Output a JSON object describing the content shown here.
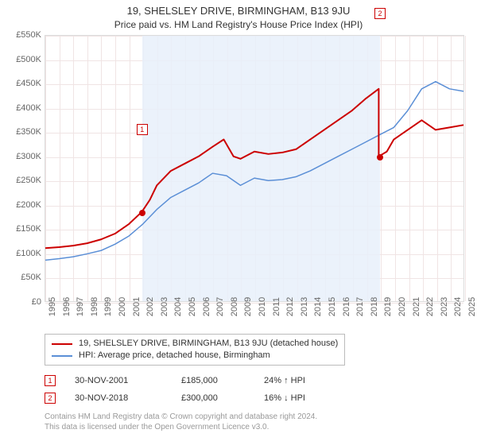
{
  "title": "19, SHELSLEY DRIVE, BIRMINGHAM, B13 9JU",
  "subtitle": "Price paid vs. HM Land Registry's House Price Index (HPI)",
  "chart": {
    "ylim": [
      0,
      550000
    ],
    "ytick_step": 50000,
    "yticks_labels": [
      "£0",
      "£50K",
      "£100K",
      "£150K",
      "£200K",
      "£250K",
      "£300K",
      "£350K",
      "£400K",
      "£450K",
      "£500K",
      "£550K"
    ],
    "x_years": [
      1995,
      1996,
      1997,
      1998,
      1999,
      2000,
      2001,
      2002,
      2003,
      2004,
      2005,
      2006,
      2007,
      2008,
      2009,
      2010,
      2011,
      2012,
      2013,
      2014,
      2015,
      2016,
      2017,
      2018,
      2019,
      2020,
      2021,
      2022,
      2023,
      2024,
      2025
    ],
    "shade_band": {
      "start_year": 2001.92,
      "end_year": 2018.92,
      "color": "#e8f0fa"
    },
    "grid_color": "#f0e4e4",
    "border_color": "#dcdcdc",
    "background_color": "#ffffff",
    "series": [
      {
        "id": "property",
        "color": "#cc0000",
        "width": 2,
        "points": [
          [
            1995,
            110000
          ],
          [
            1996,
            112000
          ],
          [
            1997,
            115000
          ],
          [
            1998,
            120000
          ],
          [
            1999,
            128000
          ],
          [
            2000,
            140000
          ],
          [
            2001,
            160000
          ],
          [
            2001.92,
            185000
          ],
          [
            2002.5,
            210000
          ],
          [
            2003,
            240000
          ],
          [
            2004,
            270000
          ],
          [
            2005,
            285000
          ],
          [
            2006,
            300000
          ],
          [
            2007,
            320000
          ],
          [
            2007.8,
            335000
          ],
          [
            2008.5,
            300000
          ],
          [
            2009,
            295000
          ],
          [
            2010,
            310000
          ],
          [
            2011,
            305000
          ],
          [
            2012,
            308000
          ],
          [
            2013,
            315000
          ],
          [
            2014,
            335000
          ],
          [
            2015,
            355000
          ],
          [
            2016,
            375000
          ],
          [
            2017,
            395000
          ],
          [
            2018,
            420000
          ],
          [
            2018.92,
            440000
          ],
          [
            2018.921,
            300000
          ],
          [
            2019.5,
            310000
          ],
          [
            2020,
            335000
          ],
          [
            2021,
            355000
          ],
          [
            2022,
            375000
          ],
          [
            2023,
            355000
          ],
          [
            2024,
            360000
          ],
          [
            2025,
            365000
          ]
        ]
      },
      {
        "id": "hpi",
        "color": "#5b8fd6",
        "width": 1.5,
        "points": [
          [
            1995,
            85000
          ],
          [
            1996,
            88000
          ],
          [
            1997,
            92000
          ],
          [
            1998,
            98000
          ],
          [
            1999,
            105000
          ],
          [
            2000,
            118000
          ],
          [
            2001,
            135000
          ],
          [
            2002,
            160000
          ],
          [
            2003,
            190000
          ],
          [
            2004,
            215000
          ],
          [
            2005,
            230000
          ],
          [
            2006,
            245000
          ],
          [
            2007,
            265000
          ],
          [
            2008,
            260000
          ],
          [
            2009,
            240000
          ],
          [
            2010,
            255000
          ],
          [
            2011,
            250000
          ],
          [
            2012,
            252000
          ],
          [
            2013,
            258000
          ],
          [
            2014,
            270000
          ],
          [
            2015,
            285000
          ],
          [
            2016,
            300000
          ],
          [
            2017,
            315000
          ],
          [
            2018,
            330000
          ],
          [
            2019,
            345000
          ],
          [
            2020,
            360000
          ],
          [
            2021,
            395000
          ],
          [
            2022,
            440000
          ],
          [
            2023,
            455000
          ],
          [
            2024,
            440000
          ],
          [
            2025,
            435000
          ]
        ]
      }
    ],
    "markers": [
      {
        "n": "1",
        "year": 2001.92,
        "value": 185000,
        "dot_color": "#cc0000",
        "box_offset_y": -112
      },
      {
        "n": "2",
        "year": 2018.92,
        "value": 300000,
        "dot_color": "#cc0000",
        "box_offset_y": -188
      }
    ]
  },
  "legend": {
    "items": [
      {
        "color": "#cc0000",
        "label": "19, SHELSLEY DRIVE, BIRMINGHAM, B13 9JU (detached house)"
      },
      {
        "color": "#5b8fd6",
        "label": "HPI: Average price, detached house, Birmingham"
      }
    ]
  },
  "transactions": [
    {
      "n": "1",
      "date": "30-NOV-2001",
      "price": "£185,000",
      "delta": "24% ↑ HPI"
    },
    {
      "n": "2",
      "date": "30-NOV-2018",
      "price": "£300,000",
      "delta": "16% ↓ HPI"
    }
  ],
  "footer": {
    "line1": "Contains HM Land Registry data © Crown copyright and database right 2024.",
    "line2": "This data is licensed under the Open Government Licence v3.0."
  }
}
